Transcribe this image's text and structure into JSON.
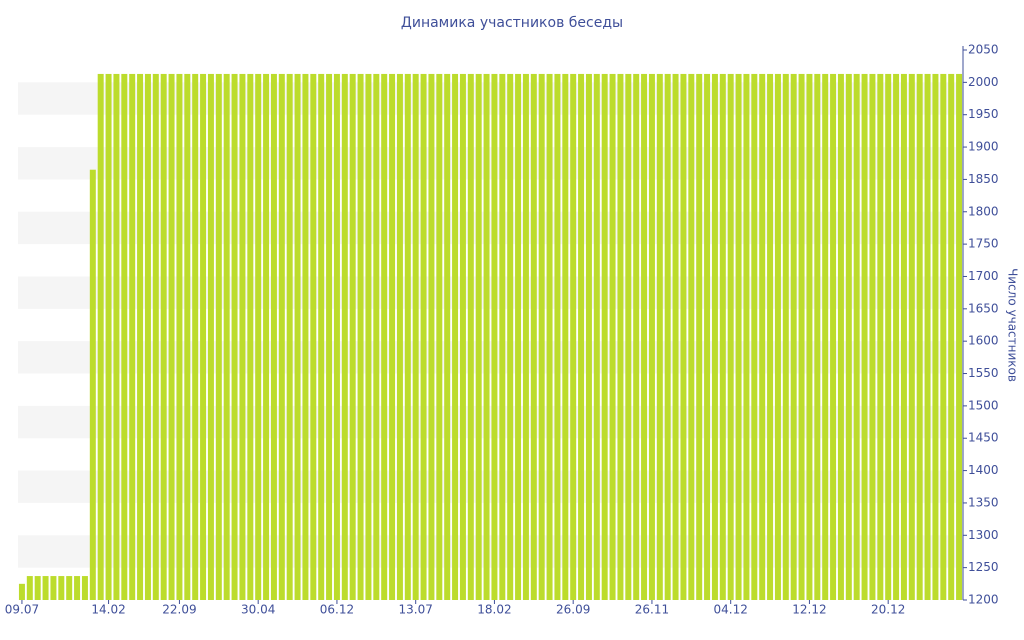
{
  "chart_data": {
    "type": "bar",
    "title": "Динамика участников беседы",
    "y_label": "Число участников",
    "color": "#bcdc2c",
    "categories": [
      "09.07",
      null,
      null,
      null,
      null,
      null,
      null,
      null,
      null,
      null,
      null,
      "14.02",
      null,
      null,
      null,
      null,
      null,
      null,
      null,
      null,
      "22.09",
      null,
      null,
      null,
      null,
      null,
      null,
      null,
      null,
      null,
      "30.04",
      null,
      null,
      null,
      null,
      null,
      null,
      null,
      null,
      null,
      "06.12",
      null,
      null,
      null,
      null,
      null,
      null,
      null,
      null,
      null,
      "13.07",
      null,
      null,
      null,
      null,
      null,
      null,
      null,
      null,
      null,
      "18.02",
      null,
      null,
      null,
      null,
      null,
      null,
      null,
      null,
      null,
      "26.09",
      null,
      null,
      null,
      null,
      null,
      null,
      null,
      null,
      null,
      "26.11",
      null,
      null,
      null,
      null,
      null,
      null,
      null,
      null,
      null,
      "04.12",
      null,
      null,
      null,
      null,
      null,
      null,
      null,
      null,
      null,
      "12.12",
      null,
      null,
      null,
      null,
      null,
      null,
      null,
      null,
      null,
      "20.12",
      null,
      null,
      null,
      null,
      null,
      null,
      null,
      null,
      null
    ],
    "values": [
      1225,
      1237,
      1237,
      1237,
      1237,
      1237,
      1237,
      1237,
      1237,
      1865,
      2013,
      2013,
      2013,
      2013,
      2013,
      2013,
      2013,
      2013,
      2013,
      2013,
      2013,
      2013,
      2013,
      2013,
      2013,
      2013,
      2013,
      2013,
      2013,
      2013,
      2013,
      2013,
      2013,
      2013,
      2013,
      2013,
      2013,
      2013,
      2013,
      2013,
      2013,
      2013,
      2013,
      2013,
      2013,
      2013,
      2013,
      2013,
      2013,
      2013,
      2013,
      2013,
      2013,
      2013,
      2013,
      2013,
      2013,
      2013,
      2013,
      2013,
      2013,
      2013,
      2013,
      2013,
      2013,
      2013,
      2013,
      2013,
      2013,
      2013,
      2013,
      2013,
      2013,
      2013,
      2013,
      2013,
      2013,
      2013,
      2013,
      2013,
      2013,
      2013,
      2013,
      2013,
      2013,
      2013,
      2013,
      2013,
      2013,
      2013,
      2013,
      2013,
      2013,
      2013,
      2013,
      2013,
      2013,
      2013,
      2013,
      2013,
      2013,
      2013,
      2013,
      2013,
      2013,
      2013,
      2013,
      2013,
      2013,
      2013,
      2013,
      2013,
      2013,
      2013,
      2013,
      2013,
      2013,
      2013,
      2013,
      2013
    ],
    "ylim": [
      1200,
      2050
    ],
    "yticks": [
      1200,
      1250,
      1300,
      1350,
      1400,
      1450,
      1500,
      1550,
      1600,
      1650,
      1700,
      1750,
      1800,
      1850,
      1900,
      1950,
      2000,
      2050
    ],
    "y_axis_side": "right",
    "banded_background": true
  }
}
